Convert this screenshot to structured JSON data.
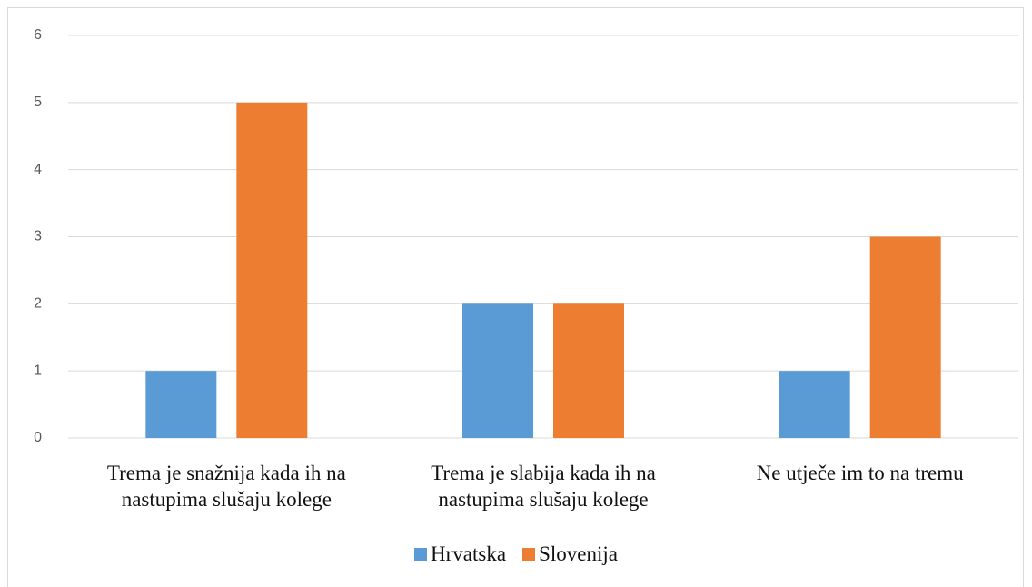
{
  "chart_data": {
    "type": "bar",
    "categories": [
      "Trema je snažnija kada ih na nastupima slušaju kolege",
      "Trema je slabija kada ih na nastupima slušaju kolege",
      "Ne utječe im to na tremu"
    ],
    "series": [
      {
        "name": "Hrvatska",
        "color": "#5b9bd5",
        "values": [
          1,
          2,
          1
        ]
      },
      {
        "name": "Slovenija",
        "color": "#ed7d31",
        "values": [
          5,
          2,
          3
        ]
      }
    ],
    "ylim": [
      0,
      6
    ],
    "yticks": [
      0,
      1,
      2,
      3,
      4,
      5,
      6
    ],
    "grid": true,
    "legend": "bottom"
  }
}
